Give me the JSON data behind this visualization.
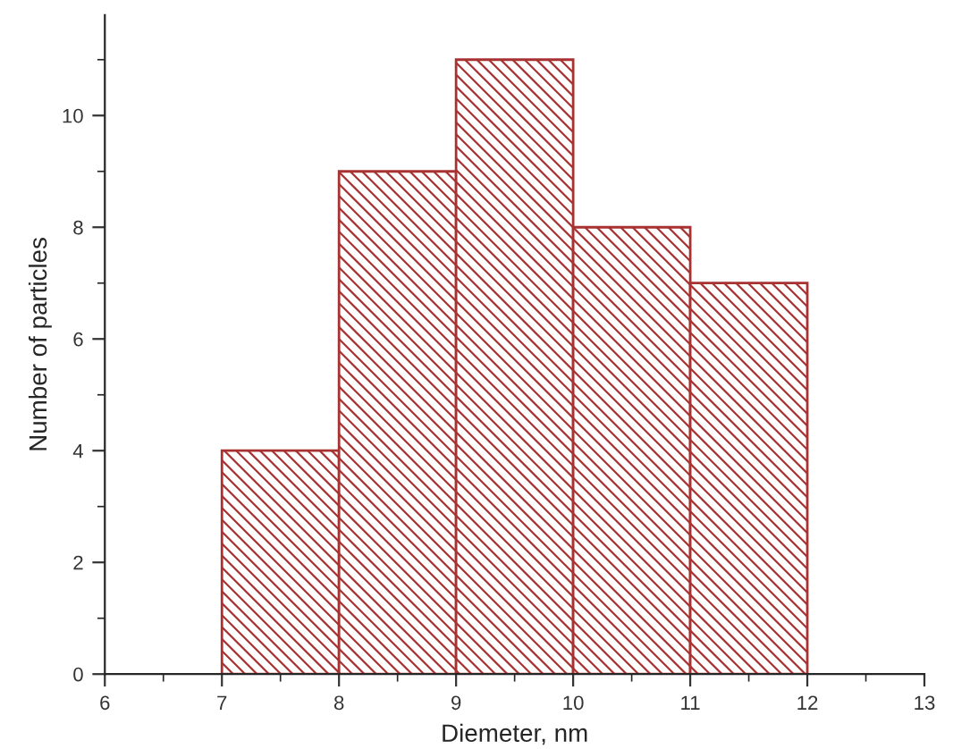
{
  "chart_data": {
    "type": "histogram",
    "xlabel": "Diemeter, nm",
    "ylabel": "Number of particles",
    "bins": [
      7,
      8,
      9,
      10,
      11,
      12
    ],
    "values": [
      4,
      9,
      11,
      8,
      7
    ],
    "color": "#a83232",
    "xlim": [
      6,
      13
    ],
    "xticks": [
      6,
      7,
      8,
      9,
      10,
      11,
      12,
      13
    ],
    "ylim": [
      0,
      11.8
    ],
    "yticks": [
      0,
      2,
      4,
      6,
      8,
      10
    ],
    "grid": false
  }
}
